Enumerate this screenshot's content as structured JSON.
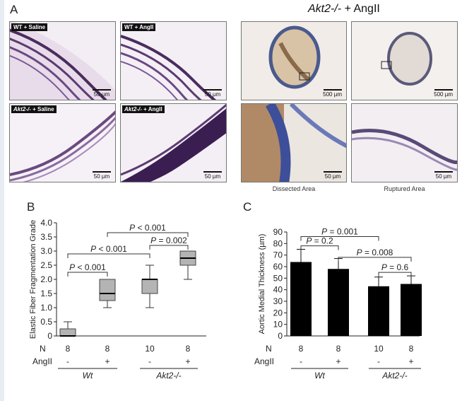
{
  "figure": {
    "panel_a_label": "A",
    "panel_b_label": "B",
    "panel_c_label": "C",
    "akt2_title_gene": "Akt2-/-",
    "akt2_title_suffix": " + AngII",
    "micrographs": [
      {
        "label_bold": "WT + Saline",
        "scale": "50 µm"
      },
      {
        "label_bold": "WT + AngII",
        "scale": "50 µm"
      },
      {
        "label_italic": "Akt2-/-",
        "label_rest": " + Saline",
        "scale": "50 µm"
      },
      {
        "label_italic": "Akt2-/-",
        "label_rest": " + AngII",
        "scale": "50 µm"
      },
      {
        "scale": "500 µm"
      },
      {
        "scale": "500 µm"
      },
      {
        "scale": "50 µm",
        "caption": "Dissected Area"
      },
      {
        "scale": "50 µm",
        "caption": "Ruptured Area"
      }
    ],
    "row_labels": {
      "n": "N",
      "angii": "AngII"
    },
    "group_labels": [
      "Wt",
      "Akt2-/-"
    ]
  },
  "chart_data": [
    {
      "type": "box",
      "ylabel": "Elastic Fiber Fragmentation Grade",
      "ylim": [
        0,
        4.0
      ],
      "yticks": [
        "0",
        "0.5",
        "1.0",
        "1.5",
        "2.0",
        "2.5",
        "3.0",
        "3.5",
        "4.0"
      ],
      "n": [
        "8",
        "8",
        "10",
        "8"
      ],
      "angii": [
        "-",
        "+",
        "-",
        "+"
      ],
      "groups": [
        "Wt",
        "Akt2-/-"
      ],
      "boxes": [
        {
          "min": 0,
          "q1": 0,
          "median": 0,
          "q3": 0.25,
          "max": 0.5
        },
        {
          "min": 1.0,
          "q1": 1.25,
          "median": 1.5,
          "q3": 2.0,
          "max": 2.0
        },
        {
          "min": 1.0,
          "q1": 1.5,
          "median": 2.0,
          "q3": 2.0,
          "max": 2.5
        },
        {
          "min": 2.0,
          "q1": 2.5,
          "median": 2.75,
          "q3": 3.0,
          "max": 3.0
        }
      ],
      "comparisons": [
        {
          "from": 0,
          "to": 1,
          "text": "P < 0.001"
        },
        {
          "from": 0,
          "to": 2,
          "text": "P < 0.001"
        },
        {
          "from": 1,
          "to": 3,
          "text": "P < 0.001"
        },
        {
          "from": 2,
          "to": 3,
          "text": "P = 0.002"
        }
      ]
    },
    {
      "type": "bar",
      "ylabel": "Aortic Medial Thickness (µm)",
      "ylim": [
        0,
        90
      ],
      "yticks": [
        "0",
        "10",
        "20",
        "30",
        "40",
        "50",
        "60",
        "70",
        "80",
        "90"
      ],
      "n": [
        "8",
        "8",
        "10",
        "8"
      ],
      "angii": [
        "-",
        "+",
        "-",
        "+"
      ],
      "groups": [
        "Wt",
        "Akt2-/-"
      ],
      "values": [
        64,
        58,
        43,
        45
      ],
      "errors": [
        11,
        9,
        8,
        7
      ],
      "comparisons": [
        {
          "from": 0,
          "to": 1,
          "text": "P = 0.2"
        },
        {
          "from": 0,
          "to": 2,
          "text": "P = 0.001"
        },
        {
          "from": 1,
          "to": 3,
          "text": "P = 0.008"
        },
        {
          "from": 2,
          "to": 3,
          "text": "P = 0.6"
        }
      ]
    }
  ]
}
